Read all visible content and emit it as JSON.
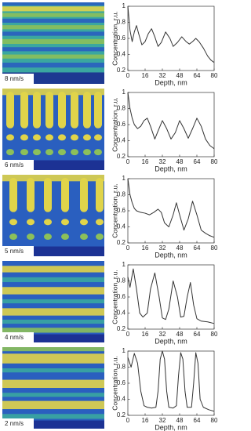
{
  "chart_data": [
    {
      "type": "line",
      "label": "8 nm/s",
      "xlabel": "Depth, nm",
      "ylabel": "Concentration, r.u.",
      "color": "#333333",
      "xlim": [
        0,
        80
      ],
      "ylim": [
        0.2,
        1
      ],
      "xticks": [
        0,
        16,
        32,
        48,
        64,
        80
      ],
      "yticks": [
        0.2,
        0.4,
        0.6,
        0.8,
        1
      ],
      "x": [
        0,
        2,
        4,
        6,
        8,
        10,
        13,
        16,
        19,
        22,
        25,
        28,
        31,
        35,
        39,
        42,
        46,
        50,
        54,
        57,
        60,
        63,
        66,
        70,
        74,
        77,
        80
      ],
      "values": [
        1,
        0.7,
        0.56,
        0.68,
        0.76,
        0.66,
        0.52,
        0.56,
        0.66,
        0.72,
        0.62,
        0.5,
        0.55,
        0.68,
        0.6,
        0.5,
        0.55,
        0.62,
        0.56,
        0.53,
        0.56,
        0.6,
        0.56,
        0.48,
        0.38,
        0.33,
        0.3
      ]
    },
    {
      "type": "line",
      "label": "6 nm/s",
      "xlabel": "Depth, nm",
      "ylabel": "Concentration, r.u.",
      "color": "#333333",
      "xlim": [
        0,
        80
      ],
      "ylim": [
        0.2,
        1
      ],
      "xticks": [
        0,
        16,
        32,
        48,
        64,
        80
      ],
      "yticks": [
        0.2,
        0.4,
        0.6,
        0.8,
        1
      ],
      "x": [
        0,
        2,
        4,
        6,
        9,
        12,
        15,
        18,
        21,
        25,
        28,
        32,
        36,
        40,
        44,
        48,
        52,
        56,
        60,
        64,
        68,
        72,
        76,
        80
      ],
      "values": [
        1,
        0.8,
        0.68,
        0.6,
        0.55,
        0.58,
        0.65,
        0.68,
        0.58,
        0.42,
        0.52,
        0.65,
        0.55,
        0.42,
        0.5,
        0.65,
        0.55,
        0.43,
        0.55,
        0.68,
        0.58,
        0.42,
        0.34,
        0.3
      ]
    },
    {
      "type": "line",
      "label": "5 nm/s",
      "xlabel": "Depth, nm",
      "ylabel": "Concentration, r.u.",
      "color": "#333333",
      "xlim": [
        0,
        80
      ],
      "ylim": [
        0.2,
        1
      ],
      "xticks": [
        0,
        16,
        32,
        48,
        64,
        80
      ],
      "yticks": [
        0.2,
        0.4,
        0.6,
        0.8,
        1
      ],
      "x": [
        0,
        2,
        4,
        6,
        8,
        12,
        16,
        20,
        24,
        28,
        31,
        34,
        38,
        42,
        45,
        48,
        52,
        56,
        60,
        64,
        68,
        72,
        76,
        80
      ],
      "values": [
        1,
        0.8,
        0.7,
        0.63,
        0.6,
        0.58,
        0.57,
        0.55,
        0.58,
        0.62,
        0.58,
        0.45,
        0.4,
        0.55,
        0.7,
        0.55,
        0.36,
        0.5,
        0.72,
        0.55,
        0.36,
        0.32,
        0.29,
        0.27
      ]
    },
    {
      "type": "line",
      "label": "4 nm/s",
      "xlabel": "Depth, nm",
      "ylabel": "Concentration, r.u.",
      "color": "#333333",
      "xlim": [
        0,
        80
      ],
      "ylim": [
        0.2,
        1
      ],
      "xticks": [
        0,
        16,
        32,
        48,
        64,
        80
      ],
      "yticks": [
        0.2,
        0.4,
        0.6,
        0.8,
        1
      ],
      "x": [
        0,
        2,
        5,
        8,
        11,
        14,
        18,
        21,
        25,
        29,
        32,
        35,
        38,
        42,
        46,
        49,
        52,
        55,
        58,
        61,
        64,
        68,
        74,
        80
      ],
      "values": [
        0.85,
        0.72,
        0.95,
        0.7,
        0.4,
        0.35,
        0.4,
        0.7,
        0.9,
        0.6,
        0.34,
        0.32,
        0.45,
        0.8,
        0.6,
        0.35,
        0.36,
        0.6,
        0.78,
        0.5,
        0.33,
        0.3,
        0.29,
        0.27
      ]
    },
    {
      "type": "line",
      "label": "2 nm/s",
      "xlabel": "Depth, nm",
      "ylabel": "Concentration, r.u.",
      "color": "#333333",
      "xlim": [
        0,
        80
      ],
      "ylim": [
        0.2,
        1
      ],
      "xticks": [
        0,
        16,
        32,
        48,
        64,
        80
      ],
      "yticks": [
        0.2,
        0.4,
        0.6,
        0.8,
        1
      ],
      "x": [
        0,
        3,
        6,
        9,
        12,
        15,
        18,
        22,
        26,
        28,
        30,
        32,
        34,
        36,
        38,
        42,
        45,
        47,
        49,
        51,
        53,
        55,
        59,
        61,
        63,
        65,
        67,
        70,
        75,
        80
      ],
      "values": [
        0.92,
        0.8,
        0.97,
        0.85,
        0.5,
        0.32,
        0.3,
        0.29,
        0.3,
        0.5,
        0.9,
        1,
        0.9,
        0.5,
        0.3,
        0.29,
        0.32,
        0.7,
        0.98,
        0.9,
        0.5,
        0.3,
        0.3,
        0.6,
        0.98,
        0.85,
        0.4,
        0.3,
        0.27,
        0.25
      ]
    }
  ]
}
